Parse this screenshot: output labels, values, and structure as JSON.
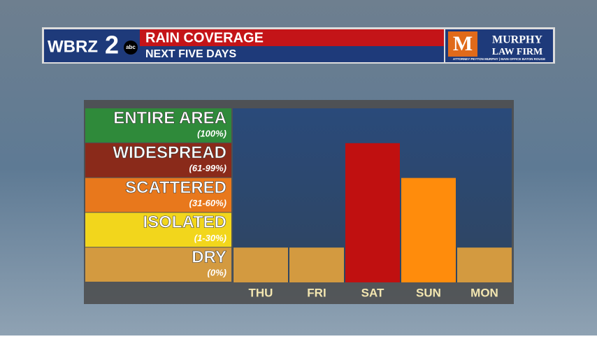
{
  "header": {
    "station": "WBRZ",
    "channel": "2",
    "network": "abc",
    "sponsor_mark": "M",
    "sponsor_name": "MURPHY",
    "sponsor_name2": "LAW FIRM",
    "sponsor_tagline": "ATTORNEY PEYTON MURPHY | MAIN OFFICE BATON ROUGE"
  },
  "chart_data": {
    "type": "bar",
    "title": "RAIN COVERAGE",
    "subtitle": "NEXT FIVE DAYS",
    "levels": [
      {
        "name": "DRY",
        "range": "(0%)",
        "color": "#d39a40"
      },
      {
        "name": "ISOLATED",
        "range": "(1-30%)",
        "color": "#f2d61c"
      },
      {
        "name": "SCATTERED",
        "range": "(31-60%)",
        "color": "#e8781c"
      },
      {
        "name": "WIDESPREAD",
        "range": "(61-99%)",
        "color": "#8a2a1a"
      },
      {
        "name": "ENTIRE AREA",
        "range": "(100%)",
        "color": "#2f8a3a"
      }
    ],
    "categories": [
      "THU",
      "FRI",
      "SAT",
      "SUN",
      "MON"
    ],
    "values": [
      1,
      1,
      4,
      3,
      1
    ],
    "colors": [
      "#d39a40",
      "#d39a40",
      "#c01010",
      "#ff8c0c",
      "#d39a40"
    ],
    "ylim": [
      0,
      5
    ]
  }
}
